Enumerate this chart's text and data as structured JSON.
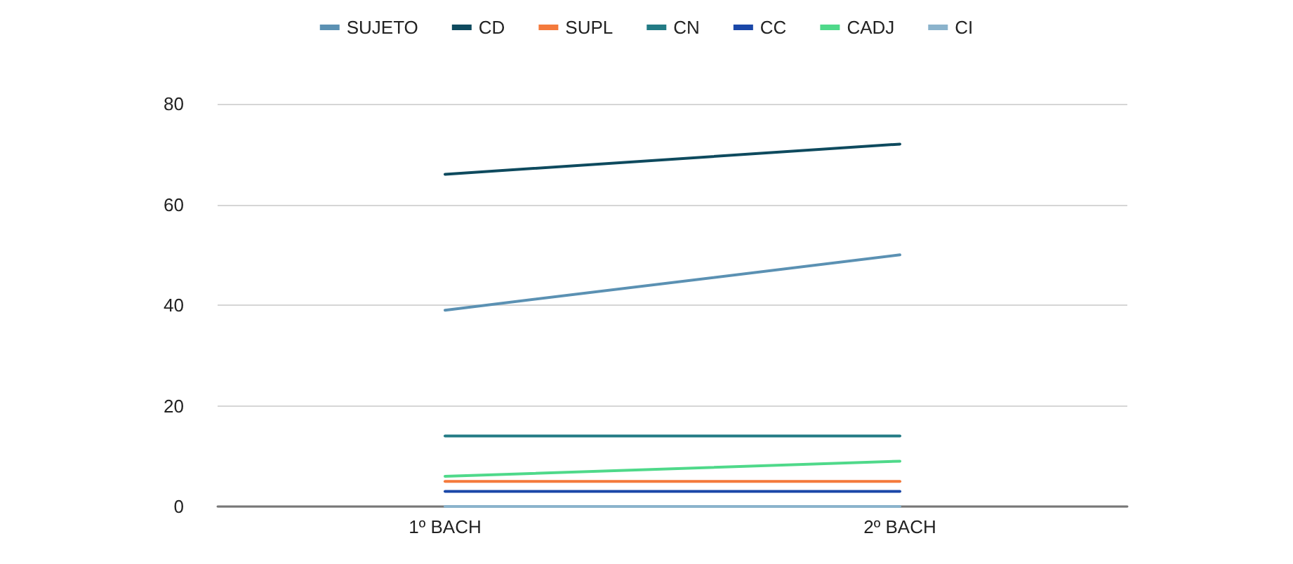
{
  "chart_data": {
    "type": "line",
    "categories": [
      "1º BACH",
      "2º BACH"
    ],
    "series": [
      {
        "name": "SUJETO",
        "color": "#5b91b3",
        "values": [
          39,
          50
        ]
      },
      {
        "name": "CD",
        "color": "#0e4a5e",
        "values": [
          66,
          72
        ]
      },
      {
        "name": "SUPL",
        "color": "#f47a3c",
        "values": [
          5,
          5
        ]
      },
      {
        "name": "CN",
        "color": "#237b85",
        "values": [
          14,
          14
        ]
      },
      {
        "name": "CC",
        "color": "#1a47a8",
        "values": [
          3,
          3
        ]
      },
      {
        "name": "CADJ",
        "color": "#4fd98a",
        "values": [
          6,
          9
        ]
      },
      {
        "name": "CI",
        "color": "#8bb3cc",
        "values": [
          0,
          0
        ]
      }
    ],
    "ylim": [
      0,
      80
    ],
    "yticks": [
      0,
      20,
      40,
      60,
      80
    ],
    "grid": "y",
    "legend": "top",
    "marker": "none",
    "line_style": "solid"
  }
}
